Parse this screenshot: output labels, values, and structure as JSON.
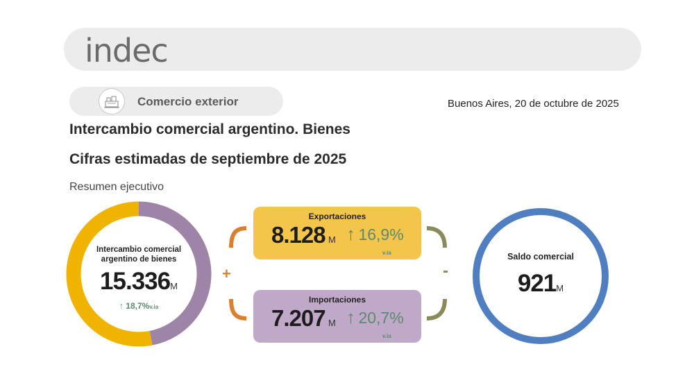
{
  "header": {
    "logo_text": "indec"
  },
  "section": {
    "label": "Comercio exterior",
    "icon": "port-icon"
  },
  "date": "Buenos Aires, 20 de octubre de 2025",
  "title_line1": "Intercambio comercial argentino. Bienes",
  "title_line2": "Cifras estimadas de septiembre de 2025",
  "subtitle": "Resumen ejecutivo",
  "intercambio": {
    "label": "Intercambio comercial argentino de bienes",
    "value": "15.336",
    "unit": "M",
    "variation": "18,7%",
    "variation_suffix": "v.ia",
    "arrow": "↑"
  },
  "exportaciones": {
    "label": "Exportaciones",
    "value": "8.128",
    "unit": "M",
    "variation": "16,9%",
    "variation_suffix": "v.ia",
    "arrow": "↑",
    "value_num": 8128
  },
  "importaciones": {
    "label": "Importaciones",
    "value": "7.207",
    "unit": "M",
    "variation": "20,7%",
    "variation_suffix": "v.ia",
    "arrow": "↑",
    "value_num": 7207
  },
  "operators": {
    "plus": "+",
    "minus": "-"
  },
  "saldo": {
    "label": "Saldo comercial",
    "value": "921",
    "unit": "M"
  },
  "colors": {
    "exports": "#f0b400",
    "imports": "#9e84a6",
    "saldo": "#4f7fc0",
    "bracket_left": "#d9812f",
    "bracket_right": "#8a8a5a",
    "positive": "#5b8a6e"
  }
}
